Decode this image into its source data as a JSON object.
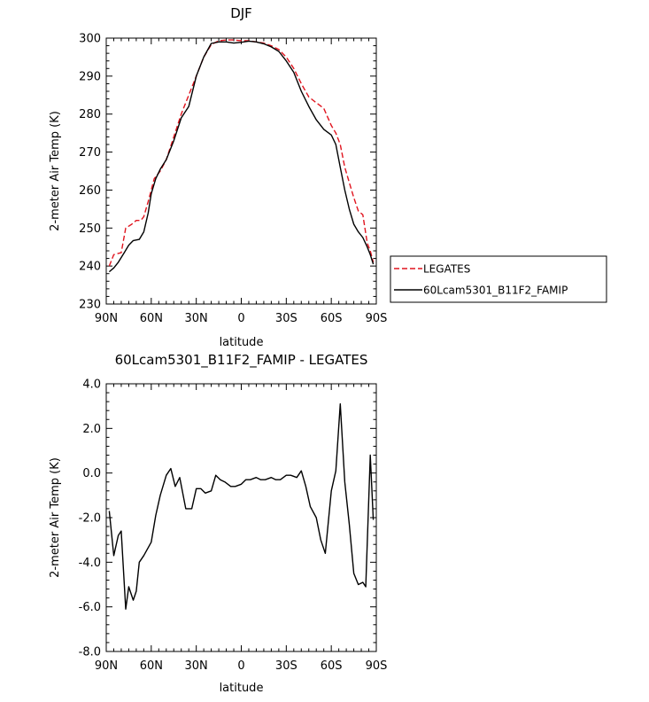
{
  "chart_data": [
    {
      "type": "line",
      "title": "DJF",
      "xlabel": "latitude",
      "ylabel": "2-meter Air Temp (K)",
      "xlim": [
        90,
        -90
      ],
      "ylim": [
        230,
        300
      ],
      "xticks": [
        90,
        60,
        30,
        0,
        -30,
        -60,
        -90
      ],
      "xtick_labels": [
        "90N",
        "60N",
        "30N",
        "0",
        "30S",
        "60S",
        "90S"
      ],
      "yticks": [
        230,
        240,
        250,
        260,
        270,
        280,
        290,
        300
      ],
      "ytick_labels": [
        "230",
        "240",
        "250",
        "260",
        "270",
        "280",
        "290",
        "300"
      ],
      "legend_position": "right",
      "series": [
        {
          "name": "LEGATES",
          "color": "#e0141e",
          "dash": "dashed",
          "x": [
            88,
            85,
            80,
            77,
            73,
            70,
            67,
            65,
            62,
            58,
            54,
            50,
            45,
            40,
            35,
            30,
            25,
            20,
            15,
            10,
            5,
            0,
            -5,
            -10,
            -15,
            -20,
            -25,
            -30,
            -35,
            -40,
            -45,
            -50,
            -55,
            -60,
            -63,
            -66,
            -69,
            -72,
            -75,
            -78,
            -81,
            -84,
            -86,
            -88
          ],
          "y": [
            240,
            243,
            243.5,
            250,
            251,
            252,
            252,
            253,
            257,
            263,
            265,
            268,
            274,
            280,
            285,
            290,
            295,
            298.3,
            299.3,
            299.5,
            299.5,
            299.3,
            299.3,
            299,
            298.7,
            298,
            297,
            295,
            292,
            288,
            284.5,
            283,
            281.5,
            277,
            275,
            272,
            266,
            262,
            258,
            254.5,
            253.5,
            246,
            244,
            241
          ]
        },
        {
          "name": "60Lcam5301_B11F2_FAMIP",
          "color": "#000000",
          "dash": "solid",
          "x": [
            88,
            85,
            82,
            78,
            75,
            72,
            68,
            65,
            62,
            60,
            57,
            54,
            50,
            45,
            40,
            35,
            30,
            25,
            20,
            15,
            10,
            5,
            0,
            -5,
            -10,
            -15,
            -20,
            -25,
            -30,
            -35,
            -40,
            -45,
            -50,
            -55,
            -60,
            -63,
            -66,
            -69,
            -72,
            -75,
            -78,
            -81,
            -84,
            -86,
            -88
          ],
          "y": [
            238.5,
            239.5,
            241,
            243.5,
            245.5,
            246.7,
            247,
            249,
            254,
            259,
            263,
            265.5,
            268,
            273,
            279,
            282,
            290,
            295,
            298.6,
            299,
            299,
            298.7,
            298.9,
            299.2,
            299,
            298.5,
            297.7,
            296.5,
            294,
            291,
            286,
            282,
            278.5,
            276,
            274.5,
            272,
            266,
            260,
            255,
            251,
            249,
            247.5,
            245,
            243,
            240.5
          ]
        }
      ]
    },
    {
      "type": "line",
      "title": "60Lcam5301_B11F2_FAMIP - LEGATES",
      "xlabel": "latitude",
      "ylabel": "2-meter Air Temp (K)",
      "xlim": [
        90,
        -90
      ],
      "ylim": [
        -8.0,
        4.0
      ],
      "xticks": [
        90,
        60,
        30,
        0,
        -30,
        -60,
        -90
      ],
      "xtick_labels": [
        "90N",
        "60N",
        "30N",
        "0",
        "30S",
        "60S",
        "90S"
      ],
      "yticks": [
        -8.0,
        -6.0,
        -4.0,
        -2.0,
        0.0,
        2.0,
        4.0
      ],
      "ytick_labels": [
        "-8.0",
        "-6.0",
        "-4.0",
        "-2.0",
        "0.0",
        "2.0",
        "4.0"
      ],
      "series": [
        {
          "color": "#000000",
          "dash": "solid",
          "x": [
            88,
            85,
            82,
            80,
            77,
            75,
            72,
            70,
            68,
            65,
            60,
            57,
            54,
            50,
            47,
            44,
            41,
            37,
            33,
            30,
            27,
            24,
            20,
            17,
            14,
            11,
            7,
            4,
            0,
            -3,
            -6,
            -10,
            -13,
            -16,
            -20,
            -23,
            -26,
            -30,
            -33,
            -37,
            -40,
            -43,
            -46,
            -50,
            -53,
            -56,
            -60,
            -63,
            -66,
            -69,
            -72,
            -75,
            -78,
            -81,
            -83,
            -86,
            -88
          ],
          "y": [
            -1.7,
            -3.7,
            -2.8,
            -2.6,
            -6.1,
            -5.1,
            -5.7,
            -5.3,
            -4.0,
            -3.7,
            -3.1,
            -1.9,
            -1.0,
            -0.1,
            0.2,
            -0.6,
            -0.2,
            -1.6,
            -1.6,
            -0.7,
            -0.7,
            -0.9,
            -0.8,
            -0.1,
            -0.3,
            -0.4,
            -0.6,
            -0.6,
            -0.5,
            -0.3,
            -0.3,
            -0.2,
            -0.3,
            -0.3,
            -0.2,
            -0.3,
            -0.3,
            -0.1,
            -0.1,
            -0.2,
            0.1,
            -0.6,
            -1.5,
            -2.0,
            -3.0,
            -3.6,
            -0.8,
            0.1,
            3.1,
            -0.4,
            -2.3,
            -4.5,
            -5.0,
            -4.9,
            -5.1,
            0.8,
            -2.1
          ]
        }
      ]
    }
  ]
}
